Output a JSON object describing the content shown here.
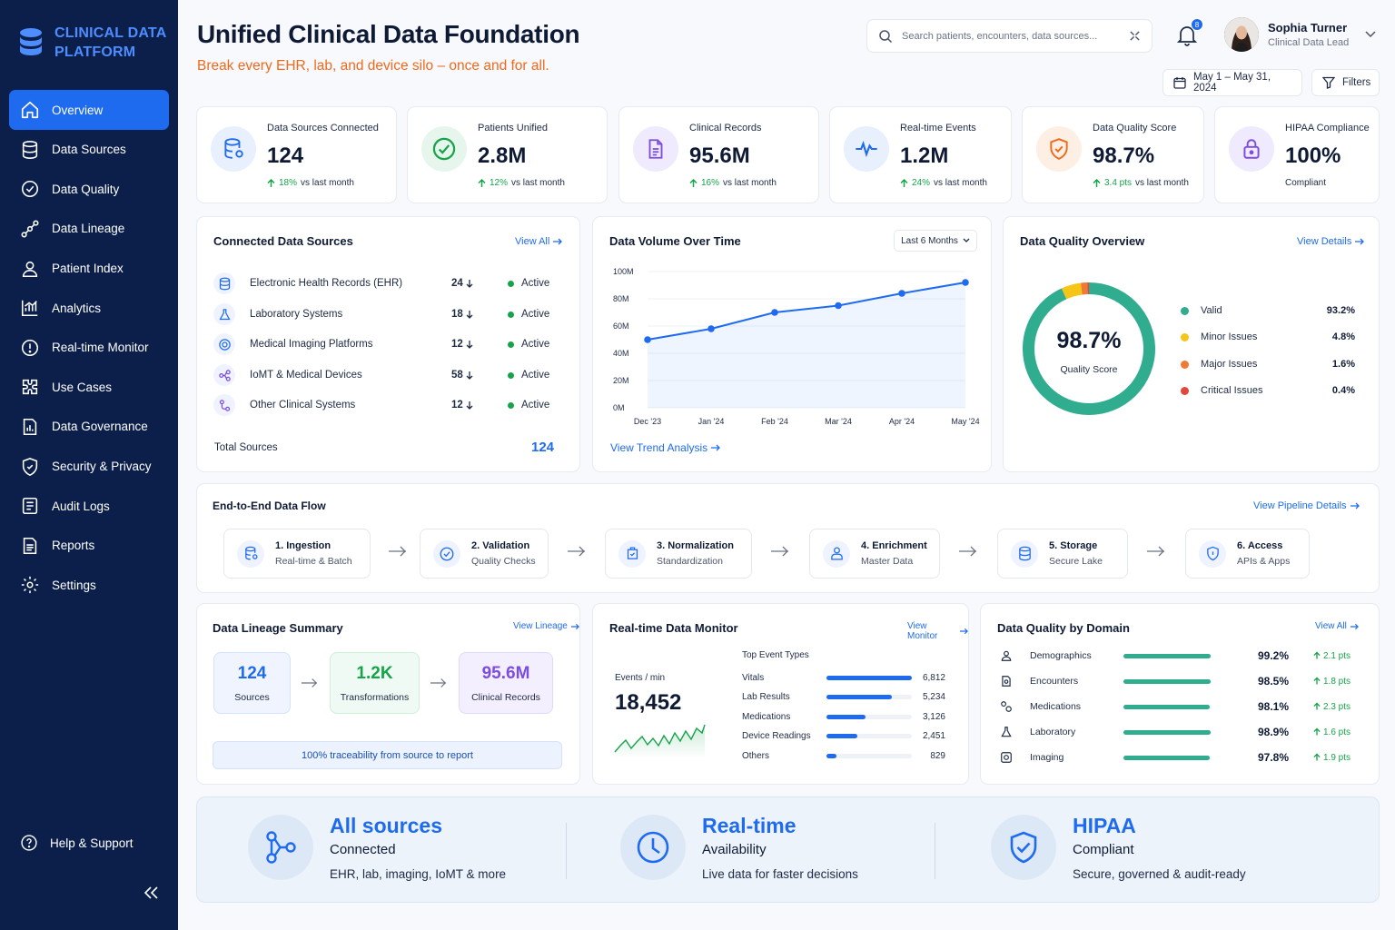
{
  "colors": {
    "accent": "#1f6bf0",
    "sidebar": "#0b1f4a",
    "orange": "#f06a1d",
    "success": "#16a34a",
    "teal": "#30ac8f"
  },
  "brand": {
    "line1": "CLINICAL DATA",
    "line2": "PLATFORM"
  },
  "nav": [
    {
      "label": "Overview",
      "icon": "home-icon",
      "active": true
    },
    {
      "label": "Data Sources",
      "icon": "database-icon"
    },
    {
      "label": "Data Quality",
      "icon": "check-shield-icon"
    },
    {
      "label": "Data Lineage",
      "icon": "lineage-icon"
    },
    {
      "label": "Patient Index",
      "icon": "person-icon"
    },
    {
      "label": "Analytics",
      "icon": "chart-icon"
    },
    {
      "label": "Real-time Monitor",
      "icon": "monitor-icon"
    },
    {
      "label": "Use Cases",
      "icon": "puzzle-icon"
    },
    {
      "label": "Data Governance",
      "icon": "governance-icon"
    },
    {
      "label": "Security & Privacy",
      "icon": "shield-icon"
    },
    {
      "label": "Audit Logs",
      "icon": "log-icon"
    },
    {
      "label": "Reports",
      "icon": "report-icon"
    },
    {
      "label": "Settings",
      "icon": "gear-icon"
    }
  ],
  "help": "Help & Support",
  "header": {
    "title": "Unified Clinical Data Foundation",
    "subtitle": "Break every EHR, lab, and device silo – once and for all.",
    "search_placeholder": "Search patients, encounters, data sources...",
    "notifications": "8",
    "user_name": "Sophia Turner",
    "user_role": "Clinical Data Lead",
    "date_range": "May 1 – May 31, 2024",
    "filters": "Filters"
  },
  "kpis": [
    {
      "label": "Data Sources Connected",
      "value": "124",
      "delta": "18%",
      "suffix": "vs last month",
      "icon": "database-icon"
    },
    {
      "label": "Patients Unified",
      "value": "2.8M",
      "delta": "12%",
      "suffix": "vs last month",
      "icon": "check-circle-icon"
    },
    {
      "label": "Clinical Records",
      "value": "95.6M",
      "delta": "16%",
      "suffix": "vs last month",
      "icon": "document-icon"
    },
    {
      "label": "Real-time Events",
      "value": "1.2M",
      "delta": "24%",
      "suffix": "vs last month",
      "icon": "pulse-icon"
    },
    {
      "label": "Data Quality Score",
      "value": "98.7%",
      "delta": "3.4 pts",
      "suffix": "vs last month",
      "icon": "shield-check-icon"
    },
    {
      "label": "HIPAA Compliance",
      "value": "100%",
      "delta": "",
      "suffix": "Compliant",
      "icon": "lock-icon"
    }
  ],
  "sources": {
    "title": "Connected Data Sources",
    "link": "View All",
    "rows": [
      {
        "name": "Electronic Health Records (EHR)",
        "count": "24",
        "status": "Active"
      },
      {
        "name": "Laboratory Systems",
        "count": "18",
        "status": "Active"
      },
      {
        "name": "Medical Imaging Platforms",
        "count": "12",
        "status": "Active"
      },
      {
        "name": "IoMT & Medical Devices",
        "count": "58",
        "status": "Active"
      },
      {
        "name": "Other Clinical Systems",
        "count": "12",
        "status": "Active"
      }
    ],
    "total_label": "Total Sources",
    "total_value": "124"
  },
  "volume": {
    "title": "Data Volume Over Time",
    "range": "Last 6 Months",
    "link": "View Trend Analysis"
  },
  "chart_data": {
    "type": "area",
    "categories": [
      "Dec '23",
      "Jan '24",
      "Feb '24",
      "Mar '24",
      "Apr '24",
      "May '24"
    ],
    "values": [
      50,
      58,
      70,
      75,
      84,
      92
    ],
    "yticks": [
      "0M",
      "20M",
      "40M",
      "60M",
      "80M",
      "100M"
    ],
    "ylim": [
      0,
      100
    ],
    "xlabel": "",
    "ylabel": ""
  },
  "quality": {
    "title": "Data Quality Overview",
    "link": "View Details",
    "score": "98.7%",
    "score_label": "Quality Score",
    "legend": [
      {
        "name": "Valid",
        "value": "93.2%",
        "pct": 93.2,
        "color": "#30ac8f"
      },
      {
        "name": "Minor Issues",
        "value": "4.8%",
        "pct": 4.8,
        "color": "#f5c518"
      },
      {
        "name": "Major Issues",
        "value": "1.6%",
        "pct": 1.6,
        "color": "#f07a35"
      },
      {
        "name": "Critical Issues",
        "value": "0.4%",
        "pct": 0.4,
        "color": "#e2473b"
      }
    ]
  },
  "flow": {
    "title": "End-to-End Data Flow",
    "link": "View Pipeline Details",
    "steps": [
      {
        "title": "1. Ingestion",
        "sub": "Real-time & Batch"
      },
      {
        "title": "2. Validation",
        "sub": "Quality Checks"
      },
      {
        "title": "3. Normalization",
        "sub": "Standardization"
      },
      {
        "title": "4. Enrichment",
        "sub": "Master Data"
      },
      {
        "title": "5. Storage",
        "sub": "Secure Lake"
      },
      {
        "title": "6. Access",
        "sub": "APIs & Apps"
      }
    ]
  },
  "lineage": {
    "title": "Data Lineage Summary",
    "link": "View Lineage",
    "boxes": [
      {
        "value": "124",
        "label": "Sources"
      },
      {
        "value": "1.2K",
        "label": "Transformations"
      },
      {
        "value": "95.6M",
        "label": "Clinical Records"
      }
    ],
    "note": "100% traceability from source to report"
  },
  "monitor": {
    "title": "Real-time Data Monitor",
    "link": "View Monitor",
    "events_label": "Events / min",
    "events_value": "18,452",
    "types_title": "Top Event Types",
    "types": [
      {
        "name": "Vitals",
        "value": "6,812",
        "n": 6812
      },
      {
        "name": "Lab Results",
        "value": "5,234",
        "n": 5234
      },
      {
        "name": "Medications",
        "value": "3,126",
        "n": 3126
      },
      {
        "name": "Device Readings",
        "value": "2,451",
        "n": 2451
      },
      {
        "name": "Others",
        "value": "829",
        "n": 829
      }
    ]
  },
  "domains": {
    "title": "Data Quality by Domain",
    "link": "View All",
    "rows": [
      {
        "name": "Demographics",
        "pct": "99.2%",
        "n": 99.2,
        "delta": "2.1 pts"
      },
      {
        "name": "Encounters",
        "pct": "98.5%",
        "n": 98.5,
        "delta": "1.8 pts"
      },
      {
        "name": "Medications",
        "pct": "98.1%",
        "n": 98.1,
        "delta": "2.3 pts"
      },
      {
        "name": "Laboratory",
        "pct": "98.9%",
        "n": 98.9,
        "delta": "1.6 pts"
      },
      {
        "name": "Imaging",
        "pct": "97.8%",
        "n": 97.8,
        "delta": "1.9 pts"
      }
    ]
  },
  "banner": [
    {
      "title": "All sources",
      "sub": "Connected",
      "desc": "EHR, lab, imaging, IoMT & more",
      "icon": "network-icon"
    },
    {
      "title": "Real-time",
      "sub": "Availability",
      "desc": "Live data for faster decisions",
      "icon": "clock-icon"
    },
    {
      "title": "HIPAA",
      "sub": "Compliant",
      "desc": "Secure, governed & audit-ready",
      "icon": "shield-check-icon"
    }
  ]
}
